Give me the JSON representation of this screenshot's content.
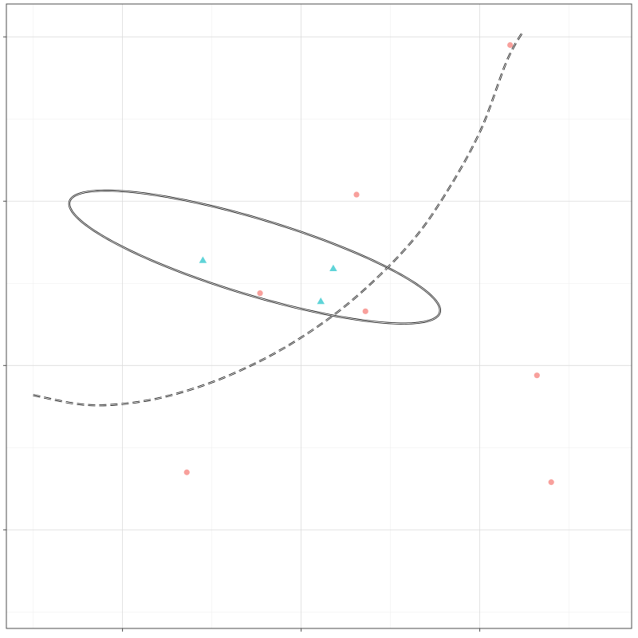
{
  "chart_data": {
    "type": "scatter",
    "title": "",
    "xlabel": "",
    "ylabel": "",
    "xlim": [
      -1.15,
      2.35
    ],
    "ylim": [
      -2.1,
      1.7
    ],
    "x_major_breaks": [
      -0.5,
      0.5,
      1.5
    ],
    "x_minor_breaks": [
      -1,
      0,
      1,
      2
    ],
    "y_major_breaks": [
      -1.5,
      -0.5,
      0.5,
      1.5
    ],
    "y_minor_breaks": [
      -2,
      -1,
      0,
      1
    ],
    "grid": true,
    "legend": "none",
    "series": [
      {
        "color": "#F8A09C",
        "marker": "circle",
        "x": [
          1.67,
          0.81,
          0.86,
          0.27,
          -0.14,
          1.82,
          1.9
        ],
        "y": [
          1.45,
          0.54,
          -0.17,
          -0.06,
          -1.15,
          -0.56,
          -1.21
        ]
      },
      {
        "color": "#5FD4D8",
        "marker": "triangle",
        "x": [
          -0.05,
          0.68,
          0.61
        ],
        "y": [
          0.14,
          0.09,
          -0.11
        ]
      }
    ],
    "ellipses": [
      {
        "linetype": "solid",
        "center_x": 0.24,
        "center_y": 0.16,
        "semi_axis_major": 1.09,
        "semi_axis_minor": 0.23,
        "angle_deg": -18.2
      }
    ],
    "curve": {
      "linetype": "dashed",
      "x": [
        -1.0,
        -0.7,
        -0.4,
        -0.1,
        0.2,
        0.5,
        0.8,
        1.1,
        1.3,
        1.5,
        1.65,
        1.74
      ],
      "y": [
        -0.68,
        -0.74,
        -0.72,
        -0.64,
        -0.51,
        -0.33,
        -0.09,
        0.23,
        0.53,
        0.92,
        1.35,
        1.53
      ]
    }
  }
}
